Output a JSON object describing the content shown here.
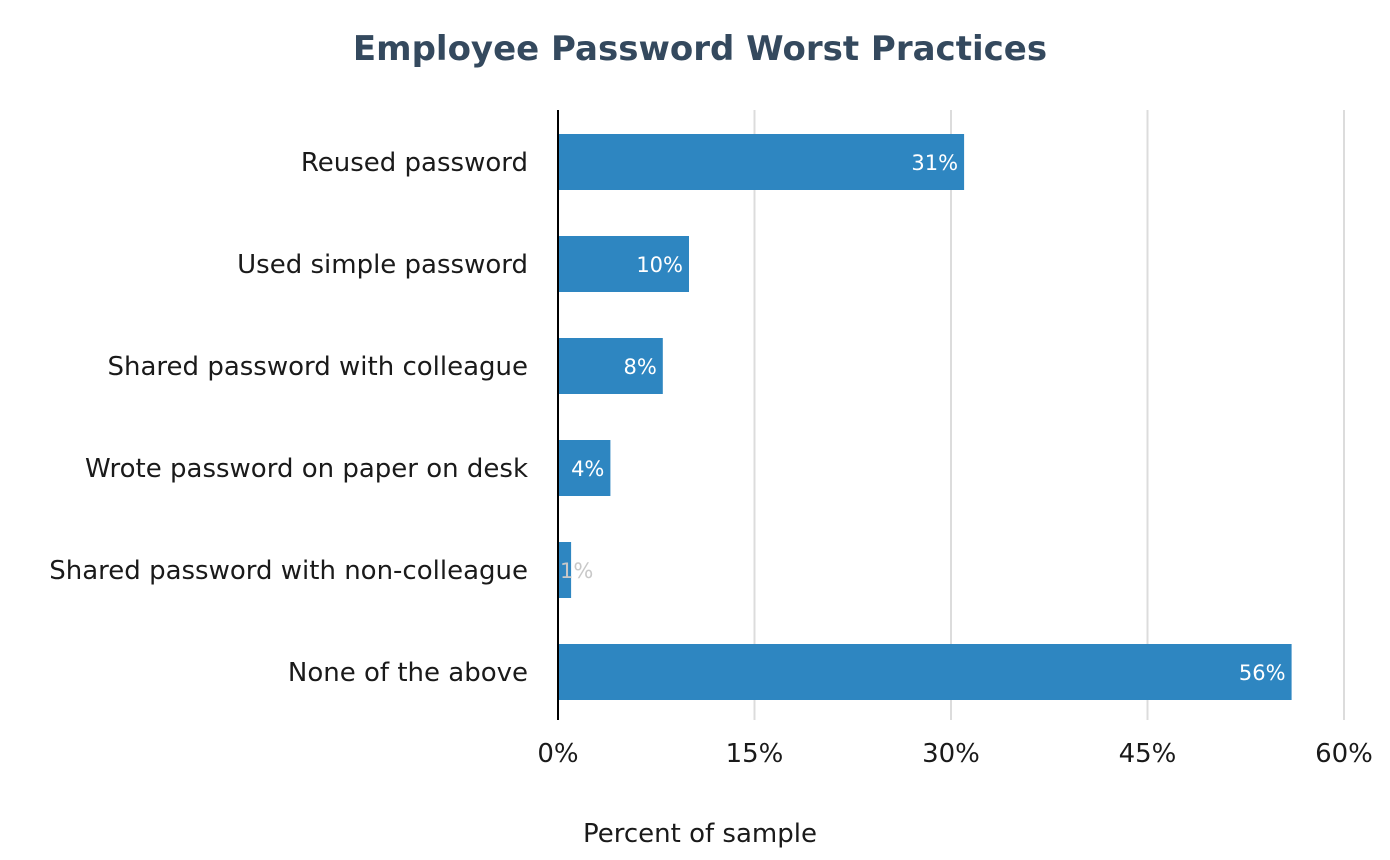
{
  "chart_data": {
    "type": "bar",
    "orientation": "horizontal",
    "title": "Employee Password Worst Practices",
    "xlabel": "Percent of sample",
    "ylabel": "",
    "xlim": [
      0,
      60
    ],
    "xticks": [
      0,
      15,
      30,
      45,
      60
    ],
    "xtick_labels": [
      "0%",
      "15%",
      "30%",
      "45%",
      "60%"
    ],
    "categories": [
      "Reused password",
      "Used simple password",
      "Shared password with colleague",
      "Wrote password on paper on desk",
      "Shared password with non-colleague",
      "None of the above"
    ],
    "values": [
      31,
      10,
      8,
      4,
      1,
      56
    ],
    "data_labels": [
      "31%",
      "10%",
      "8%",
      "4%",
      "1%",
      "56%"
    ],
    "grid": true,
    "bar_color": "#2e86c1",
    "title_color": "#34495e",
    "grid_color": "#dcdcdc"
  }
}
